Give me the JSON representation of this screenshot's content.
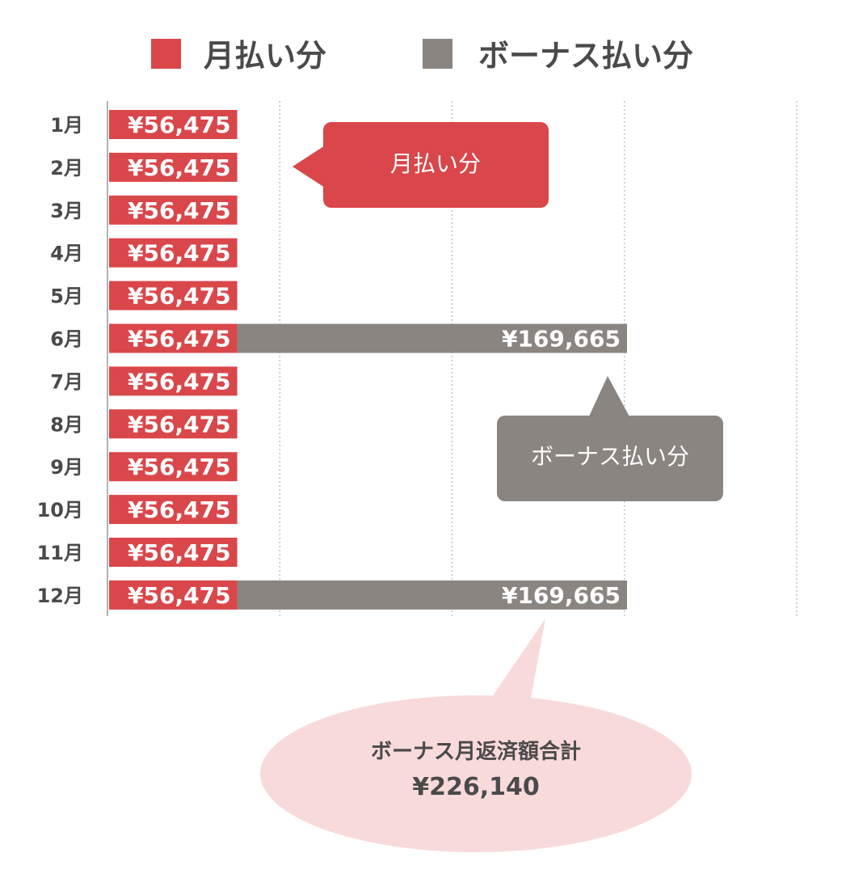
{
  "legend": {
    "monthly_label": "月払い分",
    "bonus_label": "ボーナス払い分"
  },
  "callouts": {
    "monthly": "月払い分",
    "bonus": "ボーナス払い分",
    "total_title": "ボーナス月返済額合計",
    "total_value": "¥226,140"
  },
  "colors": {
    "monthly": "#d9474b",
    "bonus": "#8a8580",
    "total_bubble": "#f9dada"
  },
  "chart_data": {
    "type": "bar",
    "orientation": "horizontal",
    "stacked": true,
    "categories": [
      "1月",
      "2月",
      "3月",
      "4月",
      "5月",
      "6月",
      "7月",
      "8月",
      "9月",
      "10月",
      "11月",
      "12月"
    ],
    "series": [
      {
        "name": "月払い分",
        "values": [
          56475,
          56475,
          56475,
          56475,
          56475,
          56475,
          56475,
          56475,
          56475,
          56475,
          56475,
          56475
        ],
        "labels": [
          "¥56,475",
          "¥56,475",
          "¥56,475",
          "¥56,475",
          "¥56,475",
          "¥56,475",
          "¥56,475",
          "¥56,475",
          "¥56,475",
          "¥56,475",
          "¥56,475",
          "¥56,475"
        ]
      },
      {
        "name": "ボーナス払い分",
        "values": [
          0,
          0,
          0,
          0,
          0,
          169665,
          0,
          0,
          0,
          0,
          0,
          169665
        ],
        "labels": [
          "",
          "",
          "",
          "",
          "",
          "¥169,665",
          "",
          "",
          "",
          "",
          "",
          "¥169,665"
        ]
      }
    ],
    "xlim": [
      0,
      300000
    ],
    "grid": true,
    "legend_position": "top"
  }
}
